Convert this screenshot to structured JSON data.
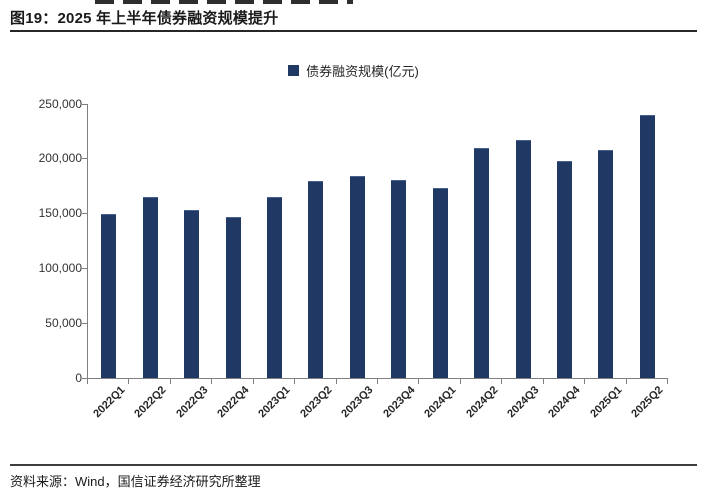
{
  "header": {
    "title": "图19：2025 年上半年债券融资规模提升"
  },
  "legend": {
    "label": "债券融资规模(亿元)",
    "swatch_color": "#1F3864"
  },
  "chart_data": {
    "type": "bar",
    "title": "图19：2025 年上半年债券融资规模提升",
    "series_name": "债券融资规模(亿元)",
    "categories": [
      "2022Q1",
      "2022Q2",
      "2022Q3",
      "2022Q4",
      "2023Q1",
      "2023Q2",
      "2023Q3",
      "2023Q4",
      "2024Q1",
      "2024Q2",
      "2024Q3",
      "2024Q4",
      "2025Q1",
      "2025Q2"
    ],
    "values": [
      149500,
      165500,
      153000,
      146500,
      165500,
      180000,
      184500,
      180500,
      173500,
      210000,
      217500,
      198000,
      208000,
      240000
    ],
    "xlabel": "",
    "ylabel": "",
    "ylim": [
      0,
      250000
    ],
    "ytick_step": 50000,
    "ytick_labels": [
      "0",
      "50,000",
      "100,000",
      "150,000",
      "200,000",
      "250,000"
    ],
    "bar_color": "#1F3864",
    "axis_color": "#808080",
    "grid": false,
    "legend_position": "top-center"
  },
  "footer": {
    "source": "资料来源：Wind，国信证券经济研究所整理"
  }
}
